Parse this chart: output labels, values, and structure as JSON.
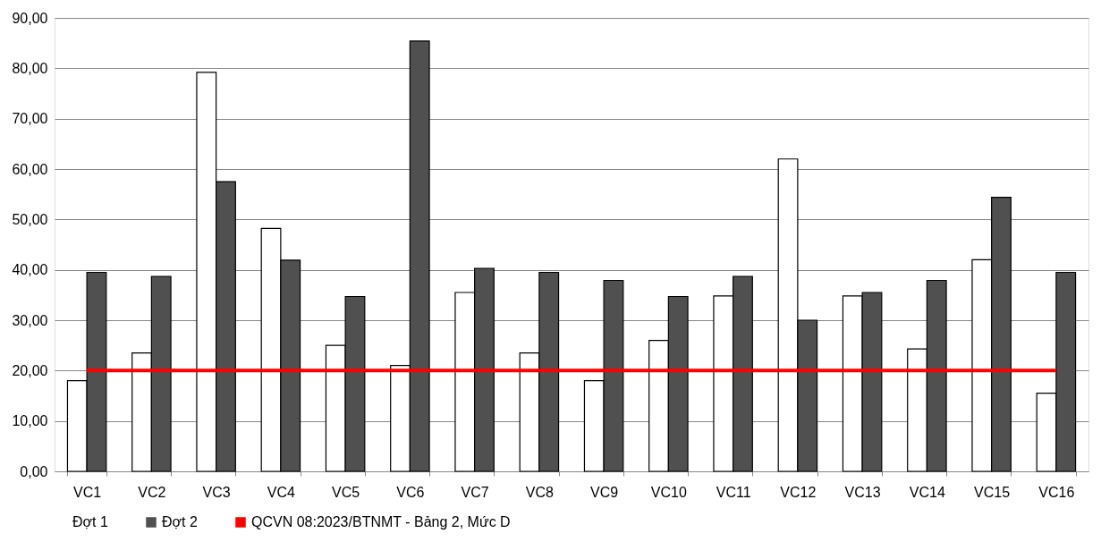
{
  "chart_data": {
    "type": "bar",
    "categories": [
      "VC1",
      "VC2",
      "VC3",
      "VC4",
      "VC5",
      "VC6",
      "VC7",
      "VC8",
      "VC9",
      "VC10",
      "VC11",
      "VC12",
      "VC13",
      "VC14",
      "VC15",
      "VC16"
    ],
    "series": [
      {
        "name": "Đợt 1",
        "color": "#ffffff",
        "values": [
          18.0,
          23.5,
          79.2,
          48.2,
          25.0,
          21.0,
          35.5,
          23.5,
          18.0,
          26.0,
          34.8,
          62.0,
          34.8,
          24.3,
          42.0,
          15.5
        ]
      },
      {
        "name": "Đợt 2",
        "color": "#505050",
        "values": [
          39.5,
          38.7,
          57.5,
          41.9,
          34.7,
          85.4,
          40.3,
          39.5,
          37.9,
          34.7,
          38.7,
          30.0,
          35.5,
          37.9,
          54.4,
          39.5
        ]
      },
      {
        "name": "QCVN 08:2023/BTNMT - Bảng 2, Mức D",
        "type": "line",
        "color": "#ff0000",
        "values": [
          20,
          20,
          20,
          20,
          20,
          20,
          20,
          20,
          20,
          20,
          20,
          20,
          20,
          20,
          20,
          20
        ]
      }
    ],
    "ylim": [
      0,
      90
    ],
    "yticks": [
      {
        "value": 0,
        "label": "0,00"
      },
      {
        "value": 10,
        "label": "10,00"
      },
      {
        "value": 20,
        "label": "20,00"
      },
      {
        "value": 30,
        "label": "30,00"
      },
      {
        "value": 40,
        "label": "40,00"
      },
      {
        "value": 50,
        "label": "50,00"
      },
      {
        "value": 60,
        "label": "60,00"
      },
      {
        "value": 70,
        "label": "70,00"
      },
      {
        "value": 80,
        "label": "80,00"
      },
      {
        "value": 90,
        "label": "90,00"
      }
    ],
    "grid": "y",
    "legend": "bottom"
  }
}
